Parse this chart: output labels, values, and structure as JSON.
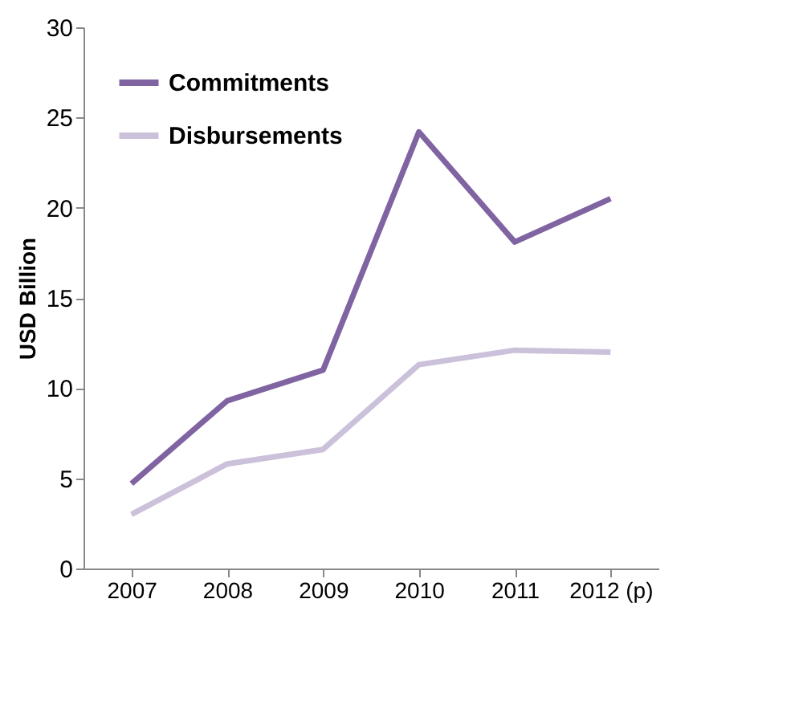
{
  "chart_data": {
    "type": "line",
    "ylabel": "USD Billion",
    "categories": [
      "2007",
      "2008",
      "2009",
      "2010",
      "2011",
      "2012 (p)"
    ],
    "ylim": [
      0,
      30
    ],
    "yticks": [
      0,
      5,
      10,
      15,
      20,
      25,
      30
    ],
    "grid": false,
    "legend": "top left",
    "marker": "none",
    "line_style": "solid",
    "series": [
      {
        "name": "Commitments",
        "color": "#8064a2",
        "values": [
          4.7,
          9.3,
          11.0,
          24.2,
          18.1,
          20.5
        ]
      },
      {
        "name": "Disbursements",
        "color": "#ccc1da",
        "values": [
          3.0,
          5.8,
          6.6,
          11.3,
          12.1,
          12.0
        ]
      }
    ]
  }
}
